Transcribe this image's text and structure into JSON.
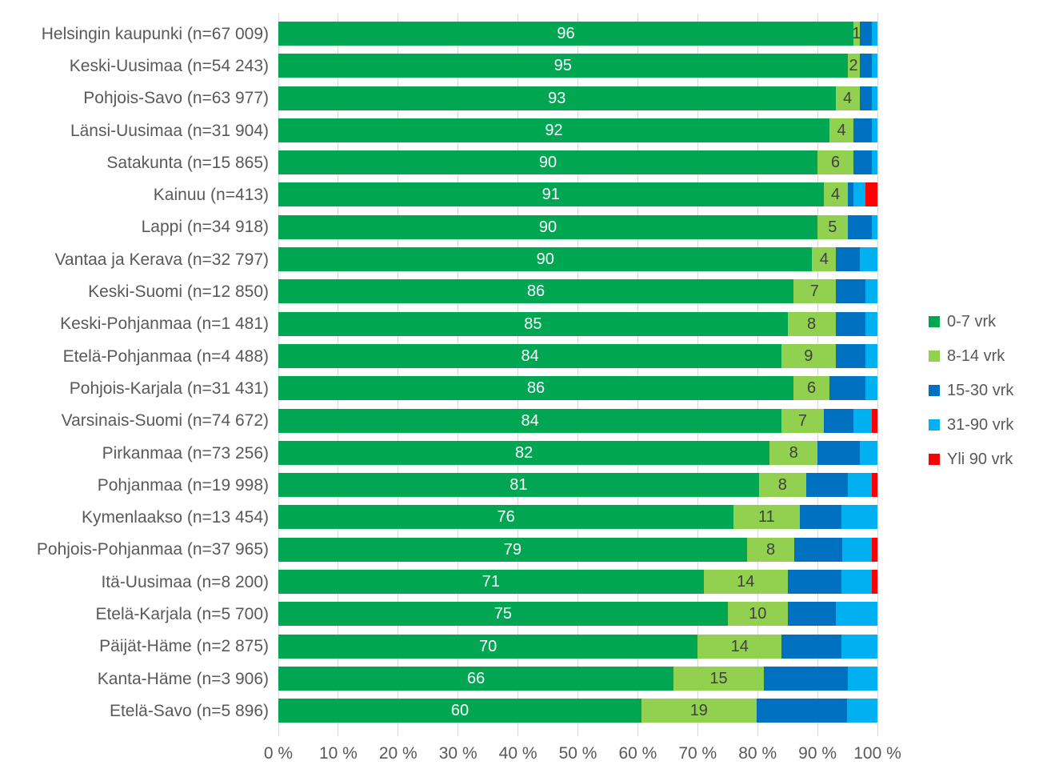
{
  "chart_data": {
    "type": "bar",
    "stacked": true,
    "orientation": "horizontal",
    "title": "",
    "xlabel": "",
    "ylabel": "",
    "xlim": [
      0,
      100
    ],
    "x_ticks": [
      "0 %",
      "10 %",
      "20 %",
      "30 %",
      "40 %",
      "50 %",
      "60 %",
      "70 %",
      "80 %",
      "90 %",
      "100 %"
    ],
    "grid": true,
    "legend_position": "right",
    "categories": [
      "Helsingin kaupunki (n=67 009)",
      "Keski-Uusimaa (n=54 243)",
      "Pohjois-Savo (n=63 977)",
      "Länsi-Uusimaa (n=31 904)",
      "Satakunta (n=15 865)",
      "Kainuu (n=413)",
      "Lappi (n=34 918)",
      "Vantaa ja Kerava (n=32 797)",
      "Keski-Suomi (n=12 850)",
      "Keski-Pohjanmaa (n=1 481)",
      "Etelä-Pohjanmaa (n=4 488)",
      "Pohjois-Karjala (n=31 431)",
      "Varsinais-Suomi (n=74 672)",
      "Pirkanmaa (n=73 256)",
      "Pohjanmaa (n=19 998)",
      "Kymenlaakso (n=13 454)",
      "Pohjois-Pohjanmaa (n=37 965)",
      "Itä-Uusimaa (n=8 200)",
      "Etelä-Karjala (n=5 700)",
      "Päijät-Häme (n=2 875)",
      "Kanta-Häme (n=3 906)",
      "Etelä-Savo (n=5 896)"
    ],
    "series": [
      {
        "name": "0-7 vrk",
        "color": "#00A652",
        "labels_shown": true,
        "label_color": "#ffffff",
        "values": [
          96,
          95,
          93,
          92,
          90,
          91,
          90,
          90,
          86,
          85,
          84,
          86,
          84,
          82,
          81,
          76,
          79,
          71,
          75,
          70,
          66,
          60
        ]
      },
      {
        "name": "8-14 vrk",
        "color": "#92D050",
        "labels_shown": true,
        "label_color": "#404040",
        "values": [
          1,
          2,
          4,
          4,
          6,
          4,
          5,
          4,
          7,
          8,
          9,
          6,
          7,
          8,
          8,
          11,
          8,
          14,
          10,
          14,
          15,
          19
        ]
      },
      {
        "name": "15-30 vrk",
        "color": "#0070C0",
        "labels_shown": false,
        "values": [
          2,
          2,
          2,
          3,
          3,
          1,
          4,
          4,
          5,
          5,
          5,
          6,
          5,
          7,
          7,
          7,
          8,
          9,
          8,
          10,
          14,
          15
        ]
      },
      {
        "name": "31-90 vrk",
        "color": "#00B0F0",
        "labels_shown": false,
        "values": [
          1,
          1,
          1,
          1,
          1,
          2,
          1,
          3,
          2,
          2,
          2,
          2,
          3,
          3,
          4,
          6,
          5,
          5,
          7,
          6,
          5,
          5
        ]
      },
      {
        "name": "Yli 90 vrk",
        "color": "#FF0000",
        "labels_shown": false,
        "values": [
          0,
          0,
          0,
          0,
          0,
          2,
          0,
          0,
          0,
          0,
          0,
          0,
          1,
          0,
          1,
          0,
          1,
          1,
          0,
          0,
          0,
          0
        ]
      }
    ]
  },
  "style_colors": {
    "gridline": "#d9d9d9",
    "axis_text": "#595959",
    "background": "#ffffff"
  }
}
